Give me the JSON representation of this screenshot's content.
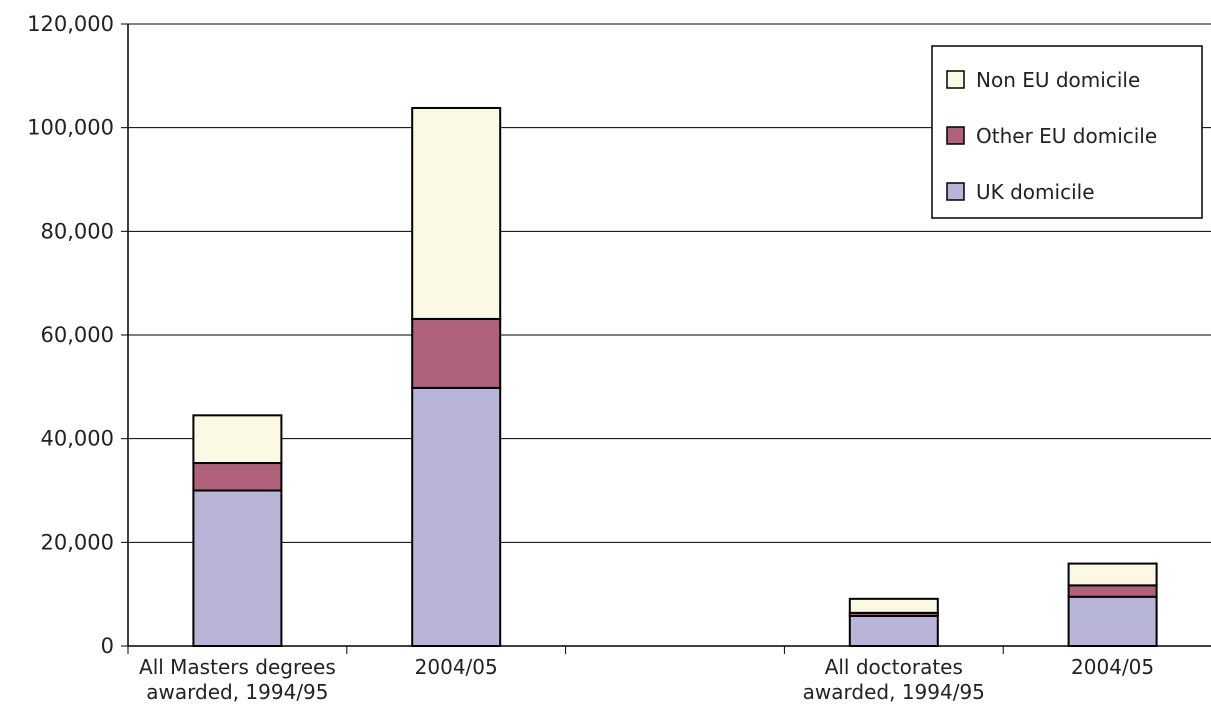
{
  "chart_data": {
    "type": "bar",
    "stacked": true,
    "categories": [
      [
        "All Masters degrees",
        "awarded, 1994/95"
      ],
      [
        "2004/05"
      ],
      [
        ""
      ],
      [
        "All doctorates",
        "awarded, 1994/95"
      ],
      [
        "2004/05"
      ]
    ],
    "series": [
      {
        "name": "UK domicile",
        "color": "#b9b5d8",
        "values": [
          30000,
          49800,
          null,
          5800,
          9500
        ]
      },
      {
        "name": "Other EU domicile",
        "color": "#b0627a",
        "values": [
          5300,
          13300,
          null,
          600,
          2200
        ]
      },
      {
        "name": "Non EU domicile",
        "color": "#fbf9e3",
        "values": [
          9200,
          40700,
          null,
          2700,
          4200
        ]
      }
    ],
    "legend_order": [
      "Non EU domicile",
      "Other EU domicile",
      "UK domicile"
    ],
    "yticks": [
      "0",
      "20,000",
      "40,000",
      "60,000",
      "80,000",
      "100,000",
      "120,000"
    ],
    "ylim": [
      0,
      120000
    ],
    "grid": "horizontal",
    "legend_position": "top-right",
    "title": "",
    "xlabel": "",
    "ylabel": ""
  }
}
